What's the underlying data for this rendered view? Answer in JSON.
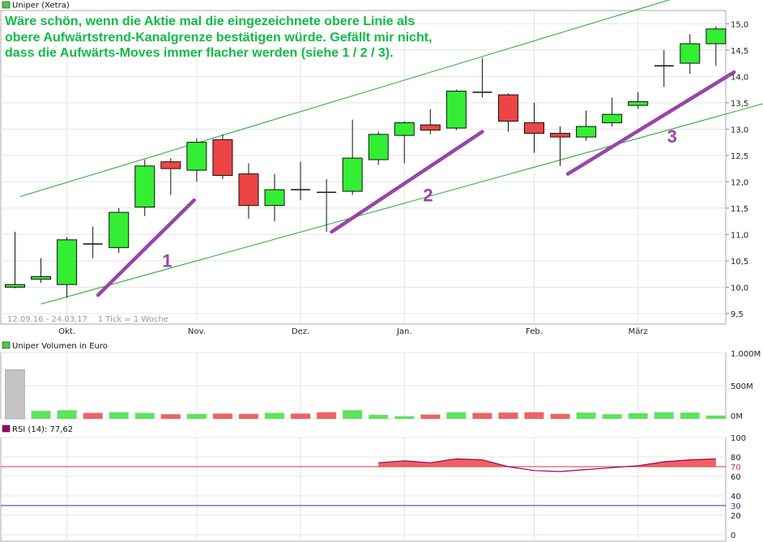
{
  "chart_data": [
    {
      "type": "candlestick",
      "legend": "Uniper (Xetra)",
      "legend_color": "#4ccc4c",
      "annotation_lines": [
        "Wäre schön, wenn die Aktie mal die eingezeichnete obere Linie als",
        "obere Aufwärtstrend-Kanalgrenze bestätigen würde. Gefällt mir nicht,",
        "dass die Aufwärts-Moves immer flacher werden (siehe 1 / 2 / 3)."
      ],
      "info_text": "12.09.16 - 24.03.17    1 Tick = 1 Woche",
      "x_tick_labels": [
        "Okt.",
        "Nov.",
        "Dez.",
        "Jan.",
        "Feb.",
        "März"
      ],
      "x_tick_index": [
        2,
        7,
        11,
        15,
        20,
        24
      ],
      "y_ticks": [
        "9,5",
        "10,0",
        "10,5",
        "11,0",
        "11,5",
        "12,0",
        "12,5",
        "13,0",
        "13,5",
        "14,0",
        "14,5",
        "15,0"
      ],
      "ylim": [
        9.3,
        15.25
      ],
      "up_color": "#33ee33",
      "down_color": "#ee4444",
      "candles": [
        {
          "o": 10.0,
          "h": 11.05,
          "l": 9.98,
          "c": 10.05
        },
        {
          "o": 10.15,
          "h": 10.55,
          "l": 10.08,
          "c": 10.2
        },
        {
          "o": 10.05,
          "h": 10.95,
          "l": 9.8,
          "c": 10.9
        },
        {
          "o": 10.82,
          "h": 11.15,
          "l": 10.55,
          "c": 10.82
        },
        {
          "o": 10.75,
          "h": 11.5,
          "l": 10.65,
          "c": 11.42
        },
        {
          "o": 11.52,
          "h": 12.42,
          "l": 11.35,
          "c": 12.3
        },
        {
          "o": 12.38,
          "h": 12.45,
          "l": 11.75,
          "c": 12.25
        },
        {
          "o": 12.22,
          "h": 12.82,
          "l": 12.0,
          "c": 12.75
        },
        {
          "o": 12.8,
          "h": 12.9,
          "l": 12.05,
          "c": 12.12
        },
        {
          "o": 12.15,
          "h": 12.35,
          "l": 11.3,
          "c": 11.55
        },
        {
          "o": 11.55,
          "h": 12.15,
          "l": 11.25,
          "c": 11.85
        },
        {
          "o": 11.85,
          "h": 12.38,
          "l": 11.65,
          "c": 11.85
        },
        {
          "o": 11.8,
          "h": 12.05,
          "l": 11.05,
          "c": 11.8
        },
        {
          "o": 11.82,
          "h": 13.18,
          "l": 11.75,
          "c": 12.45
        },
        {
          "o": 12.42,
          "h": 12.95,
          "l": 12.32,
          "c": 12.9
        },
        {
          "o": 12.88,
          "h": 13.15,
          "l": 12.35,
          "c": 13.12
        },
        {
          "o": 13.08,
          "h": 13.38,
          "l": 12.9,
          "c": 12.98
        },
        {
          "o": 13.02,
          "h": 13.75,
          "l": 12.98,
          "c": 13.72
        },
        {
          "o": 13.7,
          "h": 14.35,
          "l": 13.6,
          "c": 13.7
        },
        {
          "o": 13.65,
          "h": 13.68,
          "l": 12.95,
          "c": 13.15
        },
        {
          "o": 13.12,
          "h": 13.5,
          "l": 12.55,
          "c": 12.92
        },
        {
          "o": 12.92,
          "h": 13.05,
          "l": 12.3,
          "c": 12.85
        },
        {
          "o": 12.85,
          "h": 13.35,
          "l": 12.78,
          "c": 13.05
        },
        {
          "o": 13.12,
          "h": 13.6,
          "l": 13.05,
          "c": 13.28
        },
        {
          "o": 13.45,
          "h": 13.7,
          "l": 13.38,
          "c": 13.52
        },
        {
          "o": 14.2,
          "h": 14.5,
          "l": 13.8,
          "c": 14.2
        },
        {
          "o": 14.25,
          "h": 14.8,
          "l": 14.05,
          "c": 14.62
        },
        {
          "o": 14.62,
          "h": 14.95,
          "l": 14.2,
          "c": 14.9
        }
      ],
      "trend_lines": [
        {
          "p1": [
            0.2,
            11.72
          ],
          "p2": [
            27.2,
            15.75
          ],
          "color": "#22aa33"
        },
        {
          "p1": [
            1.0,
            9.68
          ],
          "p2": [
            28.95,
            13.5
          ],
          "color": "#22aa33"
        }
      ],
      "move_lines": [
        {
          "label": "1",
          "p1": [
            3.2,
            9.85
          ],
          "p2": [
            6.9,
            11.65
          ]
        },
        {
          "label": "2",
          "p1": [
            12.2,
            11.05
          ],
          "p2": [
            18.0,
            12.95
          ]
        },
        {
          "label": "3",
          "p1": [
            21.3,
            12.15
          ],
          "p2": [
            27.7,
            14.08
          ]
        }
      ],
      "move_color": "#9944aa"
    },
    {
      "type": "bar",
      "legend": "Uniper Volumen in Euro",
      "legend_color": "#4ccc4c",
      "y_ticks": [
        "1.000M",
        "500M",
        "0M"
      ],
      "ylim": [
        0,
        1000
      ],
      "values": [
        740,
        120,
        130,
        90,
        100,
        90,
        70,
        75,
        80,
        75,
        90,
        80,
        100,
        130,
        60,
        40,
        65,
        100,
        90,
        95,
        100,
        75,
        95,
        70,
        85,
        100,
        95,
        50
      ],
      "colors": [
        "gray",
        "up",
        "up",
        "down",
        "up",
        "up",
        "down",
        "up",
        "down",
        "down",
        "up",
        "down",
        "down",
        "up",
        "up",
        "up",
        "down",
        "up",
        "down",
        "down",
        "down",
        "down",
        "up",
        "up",
        "up",
        "up",
        "up",
        "up"
      ]
    },
    {
      "type": "area",
      "legend": "RSI (14): 77,62",
      "legend_color": "#990066",
      "y_ticks": [
        "100",
        "80",
        "70",
        "60",
        "40",
        "30",
        "20",
        "0"
      ],
      "ylim": [
        0,
        100
      ],
      "threshold_high": 70,
      "threshold_low": 30,
      "line_color": "#990066",
      "fill_color": "#ee4444",
      "rsi_start_index": 14,
      "values": [
        74,
        76,
        74,
        78,
        77,
        70,
        66,
        65,
        67,
        69,
        71,
        75,
        77,
        78
      ]
    }
  ]
}
